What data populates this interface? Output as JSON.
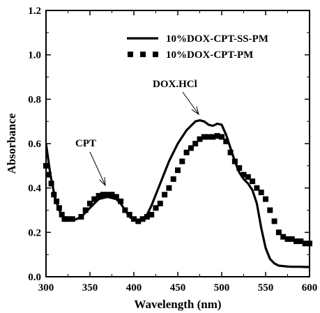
{
  "chart_data": {
    "type": "line",
    "title": "",
    "xlabel": "Wavelength (nm)",
    "ylabel": "Absorbance",
    "xlim": [
      300,
      600
    ],
    "ylim": [
      0.0,
      1.2
    ],
    "x_ticks": [
      300,
      350,
      400,
      450,
      500,
      550,
      600
    ],
    "x_tick_labels": [
      "300",
      "350",
      "400",
      "450",
      "500",
      "550",
      "600"
    ],
    "y_ticks": [
      0.0,
      0.2,
      0.4,
      0.6,
      0.8,
      1.0,
      1.2
    ],
    "y_tick_labels": [
      "0.0",
      "0.2",
      "0.4",
      "0.6",
      "0.8",
      "1.0",
      "1.2"
    ],
    "grid": false,
    "legend_position": "top-right",
    "series": [
      {
        "name": "10%DOX-CPT-SS-PM",
        "style": "solid-line",
        "color": "#000000",
        "x": [
          300,
          305,
          310,
          315,
          320,
          325,
          330,
          335,
          340,
          345,
          350,
          355,
          360,
          365,
          370,
          375,
          380,
          385,
          390,
          395,
          400,
          405,
          410,
          415,
          420,
          425,
          430,
          435,
          440,
          445,
          450,
          455,
          460,
          465,
          470,
          475,
          480,
          485,
          490,
          495,
          500,
          505,
          510,
          515,
          520,
          525,
          530,
          535,
          540,
          545,
          550,
          555,
          560,
          565,
          570,
          575,
          580,
          585,
          590,
          595,
          600
        ],
        "y": [
          0.6,
          0.46,
          0.36,
          0.3,
          0.27,
          0.26,
          0.255,
          0.26,
          0.27,
          0.29,
          0.31,
          0.33,
          0.35,
          0.355,
          0.36,
          0.355,
          0.35,
          0.33,
          0.3,
          0.27,
          0.255,
          0.25,
          0.26,
          0.28,
          0.32,
          0.37,
          0.42,
          0.47,
          0.52,
          0.56,
          0.6,
          0.63,
          0.66,
          0.68,
          0.7,
          0.705,
          0.7,
          0.685,
          0.68,
          0.69,
          0.685,
          0.64,
          0.58,
          0.52,
          0.47,
          0.44,
          0.42,
          0.39,
          0.33,
          0.22,
          0.13,
          0.08,
          0.06,
          0.05,
          0.048,
          0.046,
          0.045,
          0.045,
          0.045,
          0.044,
          0.044
        ]
      },
      {
        "name": "10%DOX-CPT-PM",
        "style": "square-markers",
        "color": "#000000",
        "x": [
          300,
          303,
          306,
          309,
          312,
          315,
          318,
          321,
          324,
          330,
          340,
          345,
          350,
          355,
          360,
          365,
          370,
          375,
          380,
          385,
          390,
          395,
          400,
          405,
          410,
          415,
          420,
          425,
          430,
          435,
          440,
          445,
          450,
          455,
          460,
          465,
          470,
          475,
          480,
          485,
          490,
          495,
          500,
          505,
          510,
          515,
          520,
          525,
          530,
          535,
          540,
          545,
          550,
          555,
          560,
          565,
          570,
          575,
          580,
          585,
          590,
          595,
          600
        ],
        "y": [
          0.5,
          0.46,
          0.42,
          0.37,
          0.34,
          0.31,
          0.28,
          0.26,
          0.26,
          0.26,
          0.27,
          0.3,
          0.33,
          0.35,
          0.365,
          0.37,
          0.37,
          0.37,
          0.36,
          0.34,
          0.3,
          0.28,
          0.26,
          0.25,
          0.26,
          0.27,
          0.28,
          0.31,
          0.33,
          0.37,
          0.4,
          0.44,
          0.48,
          0.52,
          0.56,
          0.58,
          0.6,
          0.62,
          0.63,
          0.63,
          0.63,
          0.635,
          0.63,
          0.61,
          0.56,
          0.52,
          0.49,
          0.46,
          0.45,
          0.43,
          0.4,
          0.38,
          0.35,
          0.3,
          0.25,
          0.2,
          0.18,
          0.17,
          0.17,
          0.16,
          0.16,
          0.15,
          0.15
        ]
      }
    ],
    "annotations": [
      {
        "text": "CPT",
        "x": 375,
        "y": 0.36
      },
      {
        "text": "DOX.HCl",
        "x": 482,
        "y": 0.705
      }
    ]
  }
}
